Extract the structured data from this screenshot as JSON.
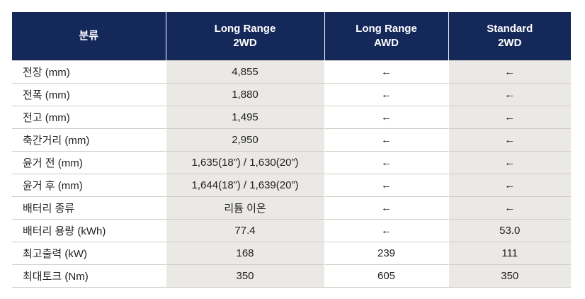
{
  "header": {
    "col0": "분류",
    "col1_line1": "Long Range",
    "col1_line2": "2WD",
    "col2_line1": "Long Range",
    "col2_line2": "AWD",
    "col3_line1": "Standard",
    "col3_line2": "2WD"
  },
  "rows": [
    {
      "label": "전장 (mm)",
      "v1": "4,855",
      "v2": "←",
      "v3": "←"
    },
    {
      "label": "전폭 (mm)",
      "v1": "1,880",
      "v2": "←",
      "v3": "←"
    },
    {
      "label": "전고 (mm)",
      "v1": "1,495",
      "v2": "←",
      "v3": "←"
    },
    {
      "label": "축간거리 (mm)",
      "v1": "2,950",
      "v2": "←",
      "v3": "←"
    },
    {
      "label": "윤거 전 (mm)",
      "v1": "1,635(18”) / 1,630(20”)",
      "v2": "←",
      "v3": "←"
    },
    {
      "label": "윤거 후 (mm)",
      "v1": "1,644(18”) / 1,639(20”)",
      "v2": "←",
      "v3": "←"
    },
    {
      "label": "배터리 종류",
      "v1": "리튬 이온",
      "v2": "←",
      "v3": "←"
    },
    {
      "label": "배터리 용량 (kWh)",
      "v1": "77.4",
      "v2": "←",
      "v3": "53.0"
    },
    {
      "label": "최고출력 (kW)",
      "v1": "168",
      "v2": "239",
      "v3": "111"
    },
    {
      "label": "최대토크 (Nm)",
      "v1": "350",
      "v2": "605",
      "v3": "350"
    }
  ]
}
